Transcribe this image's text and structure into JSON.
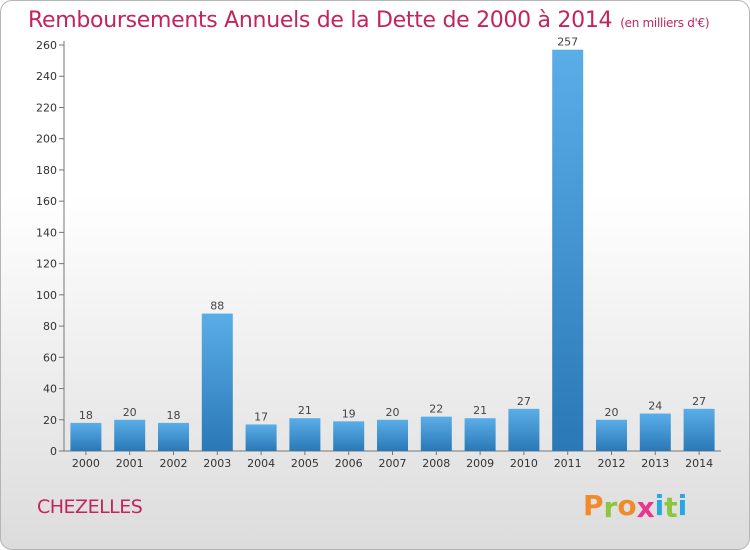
{
  "header": {
    "title": "Remboursements Annuels de la Dette de 2000 à 2014",
    "unit": "(en milliers d'€)"
  },
  "footer": {
    "commune": "CHEZELLES",
    "logo_letters": [
      "P",
      "r",
      "o",
      "x",
      "i",
      "t",
      "i"
    ]
  },
  "colors": {
    "title": "#c4245e",
    "bar_light": "#5aaee8",
    "bar_dark": "#2a78b6",
    "logo": [
      "#f08a2a",
      "#8cc63f",
      "#f08a2a",
      "#e8378c",
      "#29a8e0",
      "#8cc63f",
      "#29a8e0"
    ]
  },
  "chart_data": {
    "type": "bar",
    "title": "Remboursements Annuels de la Dette de 2000 à 2014",
    "categories": [
      "2000",
      "2001",
      "2002",
      "2003",
      "2004",
      "2005",
      "2006",
      "2007",
      "2008",
      "2009",
      "2010",
      "2011",
      "2012",
      "2013",
      "2014"
    ],
    "values": [
      18,
      20,
      18,
      88,
      17,
      21,
      19,
      20,
      22,
      21,
      27,
      257,
      20,
      24,
      27
    ],
    "data_labels": [
      "18",
      "20",
      "18",
      "88",
      "17",
      "21",
      "19",
      "20",
      "22",
      "21",
      "27",
      "257",
      "20",
      "24",
      "27"
    ],
    "ylim": [
      0,
      260
    ],
    "y_ticks": [
      0,
      20,
      40,
      60,
      80,
      100,
      120,
      140,
      160,
      180,
      200,
      220,
      240,
      260
    ],
    "grid": false,
    "legend": "none"
  }
}
